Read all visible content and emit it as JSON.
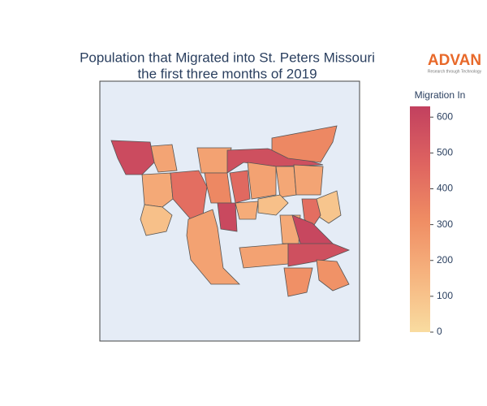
{
  "chart_data": {
    "type": "choropleth",
    "title": [
      "Population that Migrated into St. Peters Missouri",
      "the first three months of 2019"
    ],
    "colorbar_title": "Migration In",
    "values": [
      580,
      220,
      230,
      560,
      330,
      200,
      430,
      330,
      450,
      230,
      210,
      220,
      110,
      590,
      230,
      190,
      110,
      90,
      430,
      200,
      600,
      230,
      560,
      300,
      290
    ],
    "colorscale": [
      "#f9dca0",
      "#f6b47f",
      "#ef8c63",
      "#de6360",
      "#c2405f"
    ],
    "zlim": [
      0,
      630
    ],
    "zticks": [
      0,
      100,
      200,
      300,
      400,
      500,
      600
    ]
  },
  "logo": {
    "text": "ADVAN",
    "tagline": "Research through Technology"
  }
}
